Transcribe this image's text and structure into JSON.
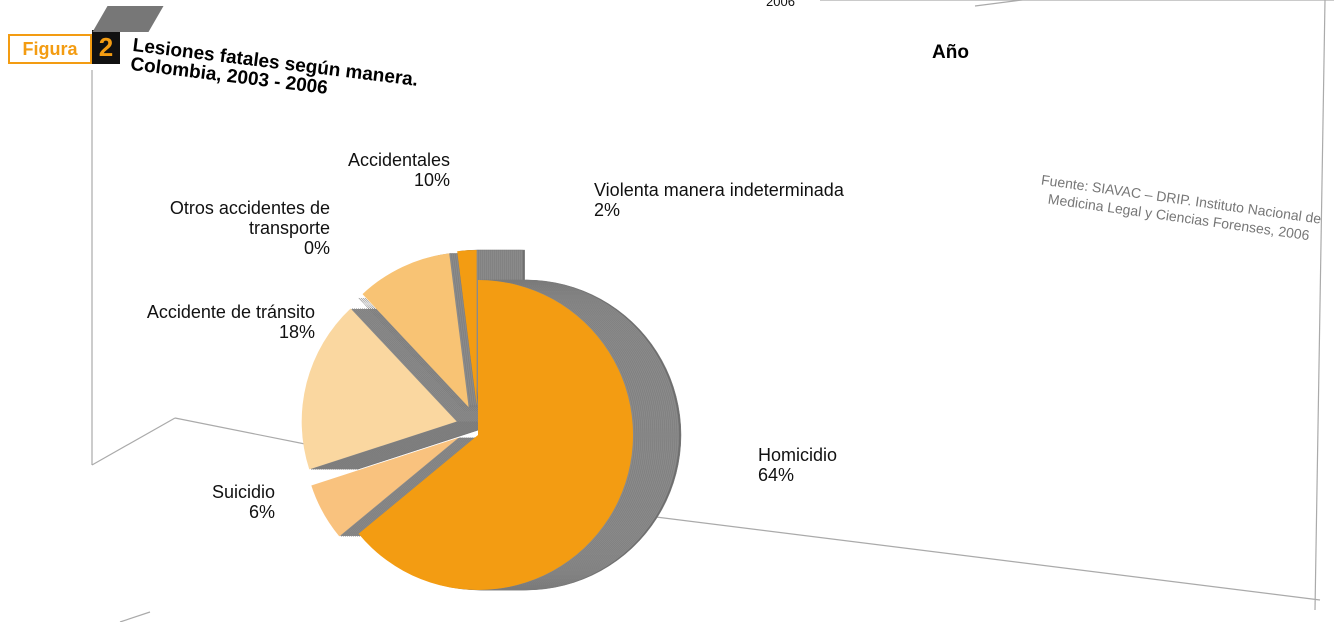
{
  "chart_data": {
    "type": "pie",
    "figure_label": "Figura",
    "figure_number": "2",
    "title": [
      "Lesiones fatales según manera.",
      "Colombia, 2003 - 2006"
    ],
    "axis_label": "Año",
    "top_label": "2006",
    "source": "Fuente: SIAVAC – DRIP. Instituto Nacional de Medicina Legal y Ciencias Forenses, 2006",
    "categories": [
      "Homicidio",
      "Suicidio",
      "Accidente de tránsito",
      "Otros accidentes de transporte",
      "Accidentales",
      "Violenta manera indeterminada"
    ],
    "values": [
      64,
      6,
      18,
      0,
      10,
      2
    ],
    "value_labels": [
      "64%",
      "6%",
      "18%",
      "0%",
      "10%",
      "2%"
    ],
    "colors": [
      "#f39c12",
      "#f9c27e",
      "#fad7a0",
      "#f7b45a",
      "#f8c374",
      "#f39c12"
    ]
  }
}
